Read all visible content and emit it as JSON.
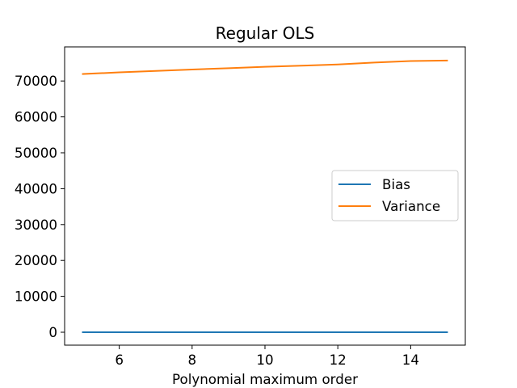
{
  "chart_data": {
    "type": "line",
    "title": "Regular OLS",
    "xlabel": "Polynomial maximum order",
    "ylabel": "",
    "xlim": [
      4.5,
      15.5
    ],
    "ylim": [
      -3600,
      79500
    ],
    "xticks": [
      6,
      8,
      10,
      12,
      14
    ],
    "yticks": [
      0,
      10000,
      20000,
      30000,
      40000,
      50000,
      60000,
      70000
    ],
    "x": [
      5,
      6,
      7,
      8,
      9,
      10,
      11,
      12,
      13,
      14,
      15
    ],
    "series": [
      {
        "name": "Bias",
        "color": "#1f77b4",
        "values": [
          0,
          0,
          0,
          0,
          0,
          0,
          0,
          0,
          0,
          0,
          0
        ]
      },
      {
        "name": "Variance",
        "color": "#ff7f0e",
        "values": [
          71950,
          72400,
          72800,
          73200,
          73550,
          73950,
          74250,
          74600,
          75150,
          75550,
          75700
        ]
      }
    ],
    "grid": false,
    "legend_position": "center-right"
  }
}
